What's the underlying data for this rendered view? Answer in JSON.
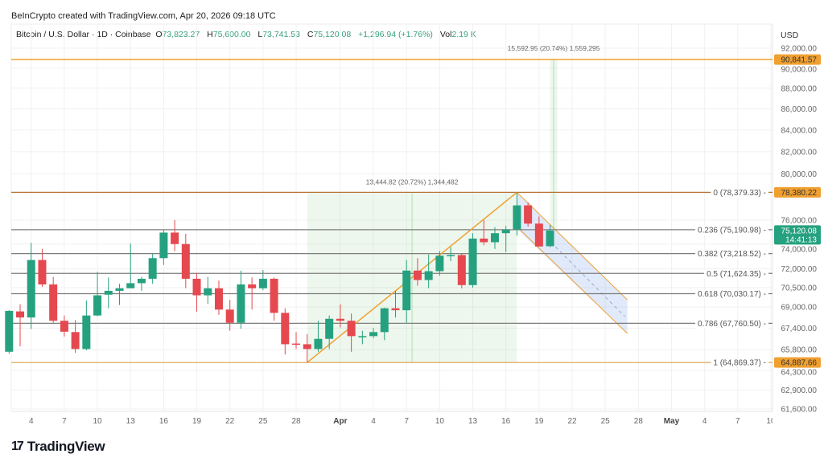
{
  "header": {
    "credit": "BeInCrypto created with TradingView.com, Apr 20, 2026 09:18 UTC",
    "symbol": "Bitcoin / U.S. Dollar · 1D · Coinbase",
    "o_label": "O",
    "o_value": "73,823.27",
    "h_label": "H",
    "h_value": "75,600.00",
    "l_label": "L",
    "l_value": "73,741.53",
    "c_label": "C",
    "c_value": "75,120.08",
    "change": "+1,296.94 (+1.76%)",
    "vol_label": "Vol",
    "vol_value": "2.19 K"
  },
  "footer": {
    "logo_text": "TradingView",
    "logo_mark": "17"
  },
  "colors": {
    "up": "#26a17f",
    "down": "#e5484f",
    "orange": "#f0a030",
    "fib0": "#b87333",
    "fib_mid": "#7d7d7d",
    "countdown_badge": "#26a17f"
  },
  "chart_data": {
    "type": "candlestick",
    "title": "Bitcoin / U.S. Dollar · 1D · Coinbase",
    "currency_label": "USD",
    "y_scale": "log",
    "ylim": [
      61600,
      92000
    ],
    "y_ticks": [
      "92,000.00",
      "90,000.00",
      "88,000.00",
      "86,000.00",
      "84,000.00",
      "82,000.00",
      "80,000.00",
      "76,000.00",
      "74,000.00",
      "72,000.00",
      "70,500.00",
      "69,000.00",
      "67,400.00",
      "65,800.00",
      "64,300.00",
      "62,900.00",
      "61,600.00"
    ],
    "y_tick_values": [
      92000,
      90000,
      88000,
      86000,
      84000,
      82000,
      80000,
      76000,
      74000,
      72000,
      70500,
      69000,
      67400,
      65800,
      64300,
      62900,
      61600
    ],
    "x_ticks": [
      {
        "date": "Mar 4",
        "label": "4"
      },
      {
        "date": "Mar 7",
        "label": "7"
      },
      {
        "date": "Mar 10",
        "label": "10"
      },
      {
        "date": "Mar 13",
        "label": "13"
      },
      {
        "date": "Mar 16",
        "label": "16"
      },
      {
        "date": "Mar 19",
        "label": "19"
      },
      {
        "date": "Mar 22",
        "label": "22"
      },
      {
        "date": "Mar 25",
        "label": "25"
      },
      {
        "date": "Mar 28",
        "label": "28"
      },
      {
        "date": "Apr 1",
        "label": "Apr"
      },
      {
        "date": "Apr 4",
        "label": "4"
      },
      {
        "date": "Apr 7",
        "label": "7"
      },
      {
        "date": "Apr 10",
        "label": "10"
      },
      {
        "date": "Apr 13",
        "label": "13"
      },
      {
        "date": "Apr 16",
        "label": "16"
      },
      {
        "date": "Apr 19",
        "label": "19"
      },
      {
        "date": "Apr 22",
        "label": "22"
      },
      {
        "date": "Apr 25",
        "label": "25"
      },
      {
        "date": "Apr 28",
        "label": "28"
      },
      {
        "date": "May 1",
        "label": "May"
      },
      {
        "date": "May 4",
        "label": "4"
      },
      {
        "date": "May 7",
        "label": "7"
      },
      {
        "date": "May 10",
        "label": "10"
      }
    ],
    "candles": [
      [
        "Mar 2",
        65650,
        68750,
        65500,
        68700
      ],
      [
        "Mar 3",
        68660,
        69200,
        66050,
        68200
      ],
      [
        "Mar 4",
        68200,
        74100,
        67330,
        72700
      ],
      [
        "Mar 5",
        72700,
        73600,
        70560,
        70750
      ],
      [
        "Mar 6",
        70750,
        71350,
        67800,
        67950
      ],
      [
        "Mar 7",
        67950,
        68350,
        66770,
        67130
      ],
      [
        "Mar 8",
        67100,
        68000,
        65570,
        65850
      ],
      [
        "Mar 9",
        65850,
        69500,
        65750,
        68350
      ],
      [
        "Mar 10",
        68350,
        71750,
        68300,
        69900
      ],
      [
        "Mar 11",
        69950,
        71300,
        68900,
        70250
      ],
      [
        "Mar 12",
        70250,
        70800,
        69150,
        70450
      ],
      [
        "Mar 13",
        70450,
        74050,
        70450,
        70850
      ],
      [
        "Mar 14",
        70850,
        71350,
        70250,
        71200
      ],
      [
        "Mar 15",
        71200,
        73220,
        70800,
        72850
      ],
      [
        "Mar 16",
        72850,
        75200,
        72300,
        74950
      ],
      [
        "Mar 17",
        74950,
        76000,
        73420,
        74000
      ],
      [
        "Mar 18",
        74000,
        74850,
        70450,
        71200
      ],
      [
        "Mar 19",
        71200,
        71650,
        68650,
        69900
      ],
      [
        "Mar 20",
        69900,
        71350,
        69250,
        70450
      ],
      [
        "Mar 21",
        70450,
        71050,
        68400,
        68800
      ],
      [
        "Mar 22",
        68800,
        69550,
        67200,
        67800
      ],
      [
        "Mar 23",
        67800,
        71850,
        67350,
        70750
      ],
      [
        "Mar 24",
        70750,
        71300,
        68800,
        70450
      ],
      [
        "Mar 25",
        70450,
        71900,
        70300,
        71200
      ],
      [
        "Mar 26",
        71200,
        71300,
        67950,
        68550
      ],
      [
        "Mar 27",
        68550,
        68900,
        65450,
        66200
      ],
      [
        "Mar 28",
        66250,
        67100,
        65850,
        66200
      ],
      [
        "Mar 29",
        66200,
        66950,
        64870,
        65850
      ],
      [
        "Mar 30",
        65850,
        67950,
        65650,
        66600
      ],
      [
        "Mar 31",
        66600,
        68350,
        65850,
        68100
      ],
      [
        "Apr 1",
        68100,
        69200,
        67450,
        67950
      ],
      [
        "Apr 2",
        67950,
        68500,
        65650,
        66800
      ],
      [
        "Apr 3",
        66750,
        67200,
        66200,
        66800
      ],
      [
        "Apr 4",
        66800,
        67400,
        66650,
        67100
      ],
      [
        "Apr 5",
        67100,
        68950,
        66500,
        68900
      ],
      [
        "Apr 6",
        68900,
        70250,
        68200,
        68750
      ],
      [
        "Apr 7",
        68750,
        72700,
        67800,
        71850
      ],
      [
        "Apr 8",
        71850,
        72850,
        70650,
        71100
      ],
      [
        "Apr 9",
        71100,
        73150,
        70450,
        71800
      ],
      [
        "Apr 10",
        71800,
        73420,
        71450,
        73050
      ],
      [
        "Apr 11",
        73050,
        73750,
        72600,
        73100
      ],
      [
        "Apr 12",
        73100,
        73200,
        70450,
        70700
      ],
      [
        "Apr 13",
        70700,
        74900,
        70500,
        74450
      ],
      [
        "Apr 14",
        74450,
        76000,
        73900,
        74150
      ],
      [
        "Apr 15",
        74150,
        75400,
        73600,
        74900
      ],
      [
        "Apr 16",
        74900,
        75500,
        73350,
        75200
      ],
      [
        "Apr 17",
        75200,
        78380,
        74700,
        77250
      ],
      [
        "Apr 18",
        77250,
        77500,
        75450,
        75700
      ],
      [
        "Apr 19",
        75700,
        76300,
        73800,
        73800
      ],
      [
        "Apr 20",
        73823.27,
        75600,
        73741.53,
        75120.08
      ]
    ],
    "horizontal_lines": [
      {
        "price": 90841.57,
        "badge": "90,841.57"
      }
    ],
    "fib_levels": [
      {
        "price": 78379.33,
        "label": "0 (78,379.33)",
        "badge": "78,380.22",
        "kind": "fib0"
      },
      {
        "price": 75190.98,
        "label": "0.236 (75,190.98)",
        "kind": "mid"
      },
      {
        "price": 73218.52,
        "label": "0.382 (73,218.52)",
        "kind": "mid"
      },
      {
        "price": 71624.35,
        "label": "0.5 (71,624.35)",
        "kind": "mid"
      },
      {
        "price": 70030.17,
        "label": "0.618 (70,030.17)",
        "kind": "mid"
      },
      {
        "price": 67760.5,
        "label": "0.786 (67,760.50)",
        "kind": "mid"
      },
      {
        "price": 64869.37,
        "label": "1 (64,869.37)",
        "badge": "64,887.66",
        "kind": "fib1"
      }
    ],
    "last_price": {
      "price": 75120.08,
      "badge": "75,120.08",
      "countdown": "14:41:13"
    },
    "measures": [
      {
        "from_date": "Mar 29",
        "to_date": "Apr 17",
        "from_price": 64869.37,
        "to_price": 78314.19,
        "label": "13,444.82 (20.72%) 1,344,482"
      },
      {
        "from_date": "Apr 20",
        "to_date": "Apr 20",
        "from_price": 75248.62,
        "to_price": 90841.57,
        "label": "15,592.95 (20.74%) 1,559,295"
      }
    ],
    "trend_line": {
      "from": [
        "Mar 29",
        64869.37
      ],
      "to": [
        "Apr 17",
        78379.33
      ]
    },
    "channel": {
      "top": [
        [
          "Apr 17",
          78380
        ],
        [
          "Apr 27",
          69550
        ]
      ],
      "bottom": [
        [
          "Apr 17",
          75240
        ],
        [
          "Apr 27",
          67000
        ]
      ]
    }
  }
}
